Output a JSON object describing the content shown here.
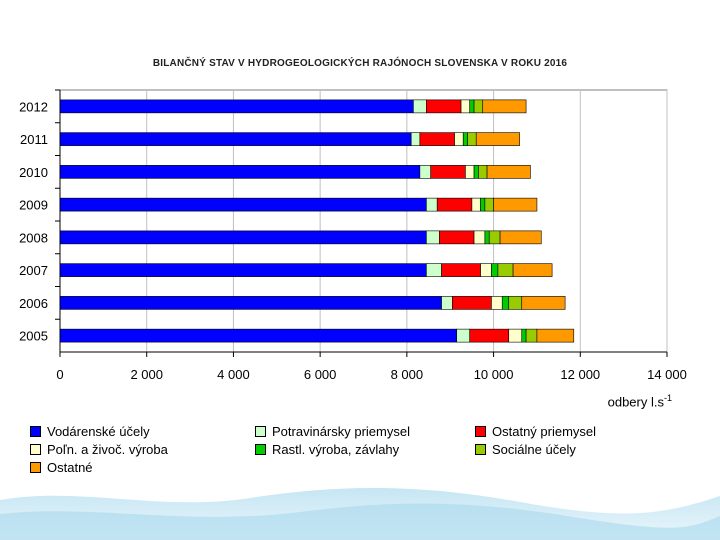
{
  "chart_data": {
    "type": "bar",
    "orientation": "horizontal",
    "stacked": true,
    "title": "BILANČNÝ STAV V HYDROGEOLOGICKÝCH RAJÓNOCH SLOVENSKA V ROKU 2016",
    "xlabel": "odbery  l.s",
    "xlabel_sup": "-1",
    "ylabel": "",
    "xlim": [
      0,
      14000
    ],
    "xticks": [
      0,
      2000,
      4000,
      6000,
      8000,
      10000,
      12000,
      14000
    ],
    "xtick_labels": [
      "0",
      "2 000",
      "4 000",
      "6 000",
      "8 000",
      "10 000",
      "12 000",
      "14 000"
    ],
    "grid": true,
    "categories": [
      "2012",
      "2011",
      "2010",
      "2009",
      "2008",
      "2007",
      "2006",
      "2005"
    ],
    "series": [
      {
        "name": "Vodárenské účely",
        "color": "#0000ff",
        "values": [
          8150,
          8100,
          8300,
          8450,
          8450,
          8450,
          8800,
          9150
        ]
      },
      {
        "name": "Potravinársky priemysel",
        "color": "#ccffcc",
        "values": [
          300,
          200,
          250,
          250,
          300,
          350,
          250,
          300
        ]
      },
      {
        "name": "Ostatný priemysel",
        "color": "#ff0000",
        "values": [
          800,
          800,
          800,
          800,
          800,
          900,
          900,
          900
        ]
      },
      {
        "name": "Poľn. a živoč. výroba",
        "color": "#ffffcc",
        "values": [
          200,
          200,
          200,
          200,
          250,
          250,
          250,
          300
        ]
      },
      {
        "name": "Rastl. výroba, závlahy",
        "color": "#00cc00",
        "values": [
          100,
          100,
          100,
          100,
          100,
          150,
          150,
          100
        ]
      },
      {
        "name": "Sociálne účely",
        "color": "#99cc00",
        "values": [
          200,
          200,
          200,
          200,
          250,
          350,
          300,
          250
        ]
      },
      {
        "name": "Ostatné",
        "color": "#ff9900",
        "values": [
          1000,
          1000,
          1000,
          1000,
          950,
          900,
          1000,
          850
        ]
      }
    ]
  }
}
